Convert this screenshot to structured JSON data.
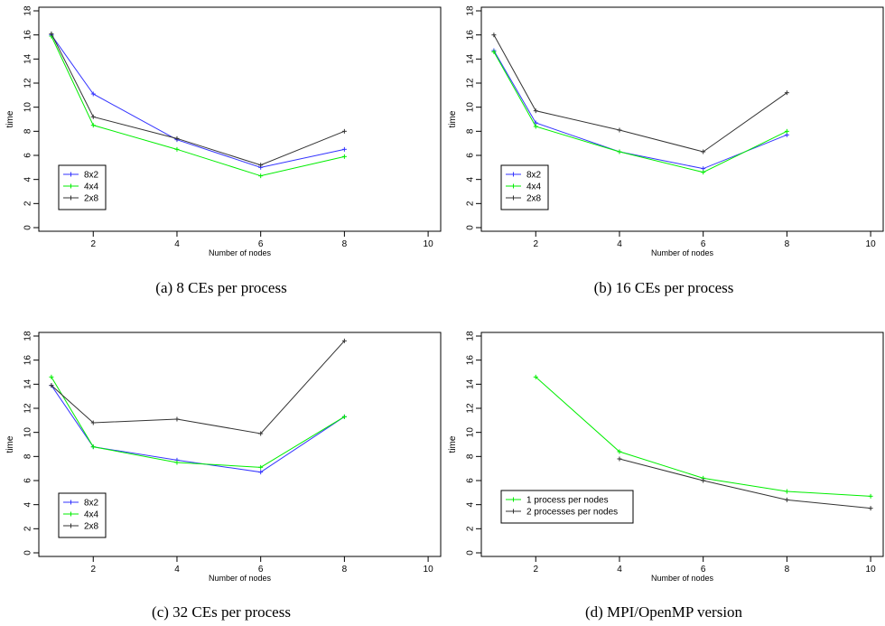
{
  "chart_data": [
    {
      "type": "line",
      "caption": "(a) 8 CEs per process",
      "xlabel": "Number of nodes",
      "ylabel": "time",
      "xlim": [
        0.7,
        10.3
      ],
      "ylim": [
        -0.3,
        18.3
      ],
      "xticks": [
        2,
        4,
        6,
        8,
        10
      ],
      "yticks": [
        0,
        2,
        4,
        6,
        8,
        10,
        12,
        14,
        16,
        18
      ],
      "legend_position": "bottom-left",
      "series": [
        {
          "name": "8x2",
          "color": "#3333ff",
          "x": [
            1,
            2,
            4,
            6,
            8
          ],
          "y": [
            16.0,
            11.1,
            7.3,
            5.0,
            6.5
          ]
        },
        {
          "name": "4x4",
          "color": "#00ee00",
          "x": [
            1,
            2,
            4,
            6,
            8
          ],
          "y": [
            15.9,
            8.5,
            6.5,
            4.3,
            5.9
          ]
        },
        {
          "name": "2x8",
          "color": "#333333",
          "x": [
            1,
            2,
            4,
            6,
            8
          ],
          "y": [
            16.1,
            9.2,
            7.4,
            5.2,
            8.0
          ]
        }
      ]
    },
    {
      "type": "line",
      "caption": "(b) 16 CEs per process",
      "xlabel": "Number of nodes",
      "ylabel": "time",
      "xlim": [
        0.7,
        10.3
      ],
      "ylim": [
        -0.3,
        18.3
      ],
      "xticks": [
        2,
        4,
        6,
        8,
        10
      ],
      "yticks": [
        0,
        2,
        4,
        6,
        8,
        10,
        12,
        14,
        16,
        18
      ],
      "legend_position": "bottom-left",
      "series": [
        {
          "name": "8x2",
          "color": "#3333ff",
          "x": [
            1,
            2,
            4,
            6,
            8
          ],
          "y": [
            14.7,
            8.7,
            6.3,
            4.9,
            7.7
          ]
        },
        {
          "name": "4x4",
          "color": "#00ee00",
          "x": [
            1,
            2,
            4,
            6,
            8
          ],
          "y": [
            14.6,
            8.4,
            6.3,
            4.6,
            8.0
          ]
        },
        {
          "name": "2x8",
          "color": "#333333",
          "x": [
            1,
            2,
            4,
            6,
            8
          ],
          "y": [
            16.0,
            9.7,
            8.1,
            6.3,
            11.2
          ]
        }
      ]
    },
    {
      "type": "line",
      "caption": "(c) 32 CEs per process",
      "xlabel": "Number of nodes",
      "ylabel": "time",
      "xlim": [
        0.7,
        10.3
      ],
      "ylim": [
        -0.3,
        18.3
      ],
      "xticks": [
        2,
        4,
        6,
        8,
        10
      ],
      "yticks": [
        0,
        2,
        4,
        6,
        8,
        10,
        12,
        14,
        16,
        18
      ],
      "legend_position": "bottom-left",
      "series": [
        {
          "name": "8x2",
          "color": "#3333ff",
          "x": [
            1,
            2,
            4,
            6,
            8
          ],
          "y": [
            13.9,
            8.8,
            7.7,
            6.7,
            11.3
          ]
        },
        {
          "name": "4x4",
          "color": "#00ee00",
          "x": [
            1,
            2,
            4,
            6,
            8
          ],
          "y": [
            14.6,
            8.8,
            7.5,
            7.1,
            11.3
          ]
        },
        {
          "name": "2x8",
          "color": "#333333",
          "x": [
            1,
            2,
            4,
            6,
            8
          ],
          "y": [
            13.9,
            10.8,
            11.1,
            9.9,
            17.6
          ]
        }
      ]
    },
    {
      "type": "line",
      "caption": "(d) MPI/OpenMP version",
      "xlabel": "Number of nodes",
      "ylabel": "time",
      "xlim": [
        0.7,
        10.3
      ],
      "ylim": [
        -0.3,
        18.3
      ],
      "xticks": [
        2,
        4,
        6,
        8,
        10
      ],
      "yticks": [
        0,
        2,
        4,
        6,
        8,
        10,
        12,
        14,
        16,
        18
      ],
      "legend_position": "bottom-left",
      "series": [
        {
          "name": "1 process per nodes",
          "color": "#00ee00",
          "x": [
            2,
            4,
            6,
            8,
            10
          ],
          "y": [
            14.6,
            8.4,
            6.2,
            5.1,
            4.7
          ]
        },
        {
          "name": "2 processes per nodes",
          "color": "#333333",
          "x": [
            4,
            6,
            8,
            10
          ],
          "y": [
            7.8,
            6.0,
            4.4,
            3.7
          ]
        }
      ]
    }
  ]
}
